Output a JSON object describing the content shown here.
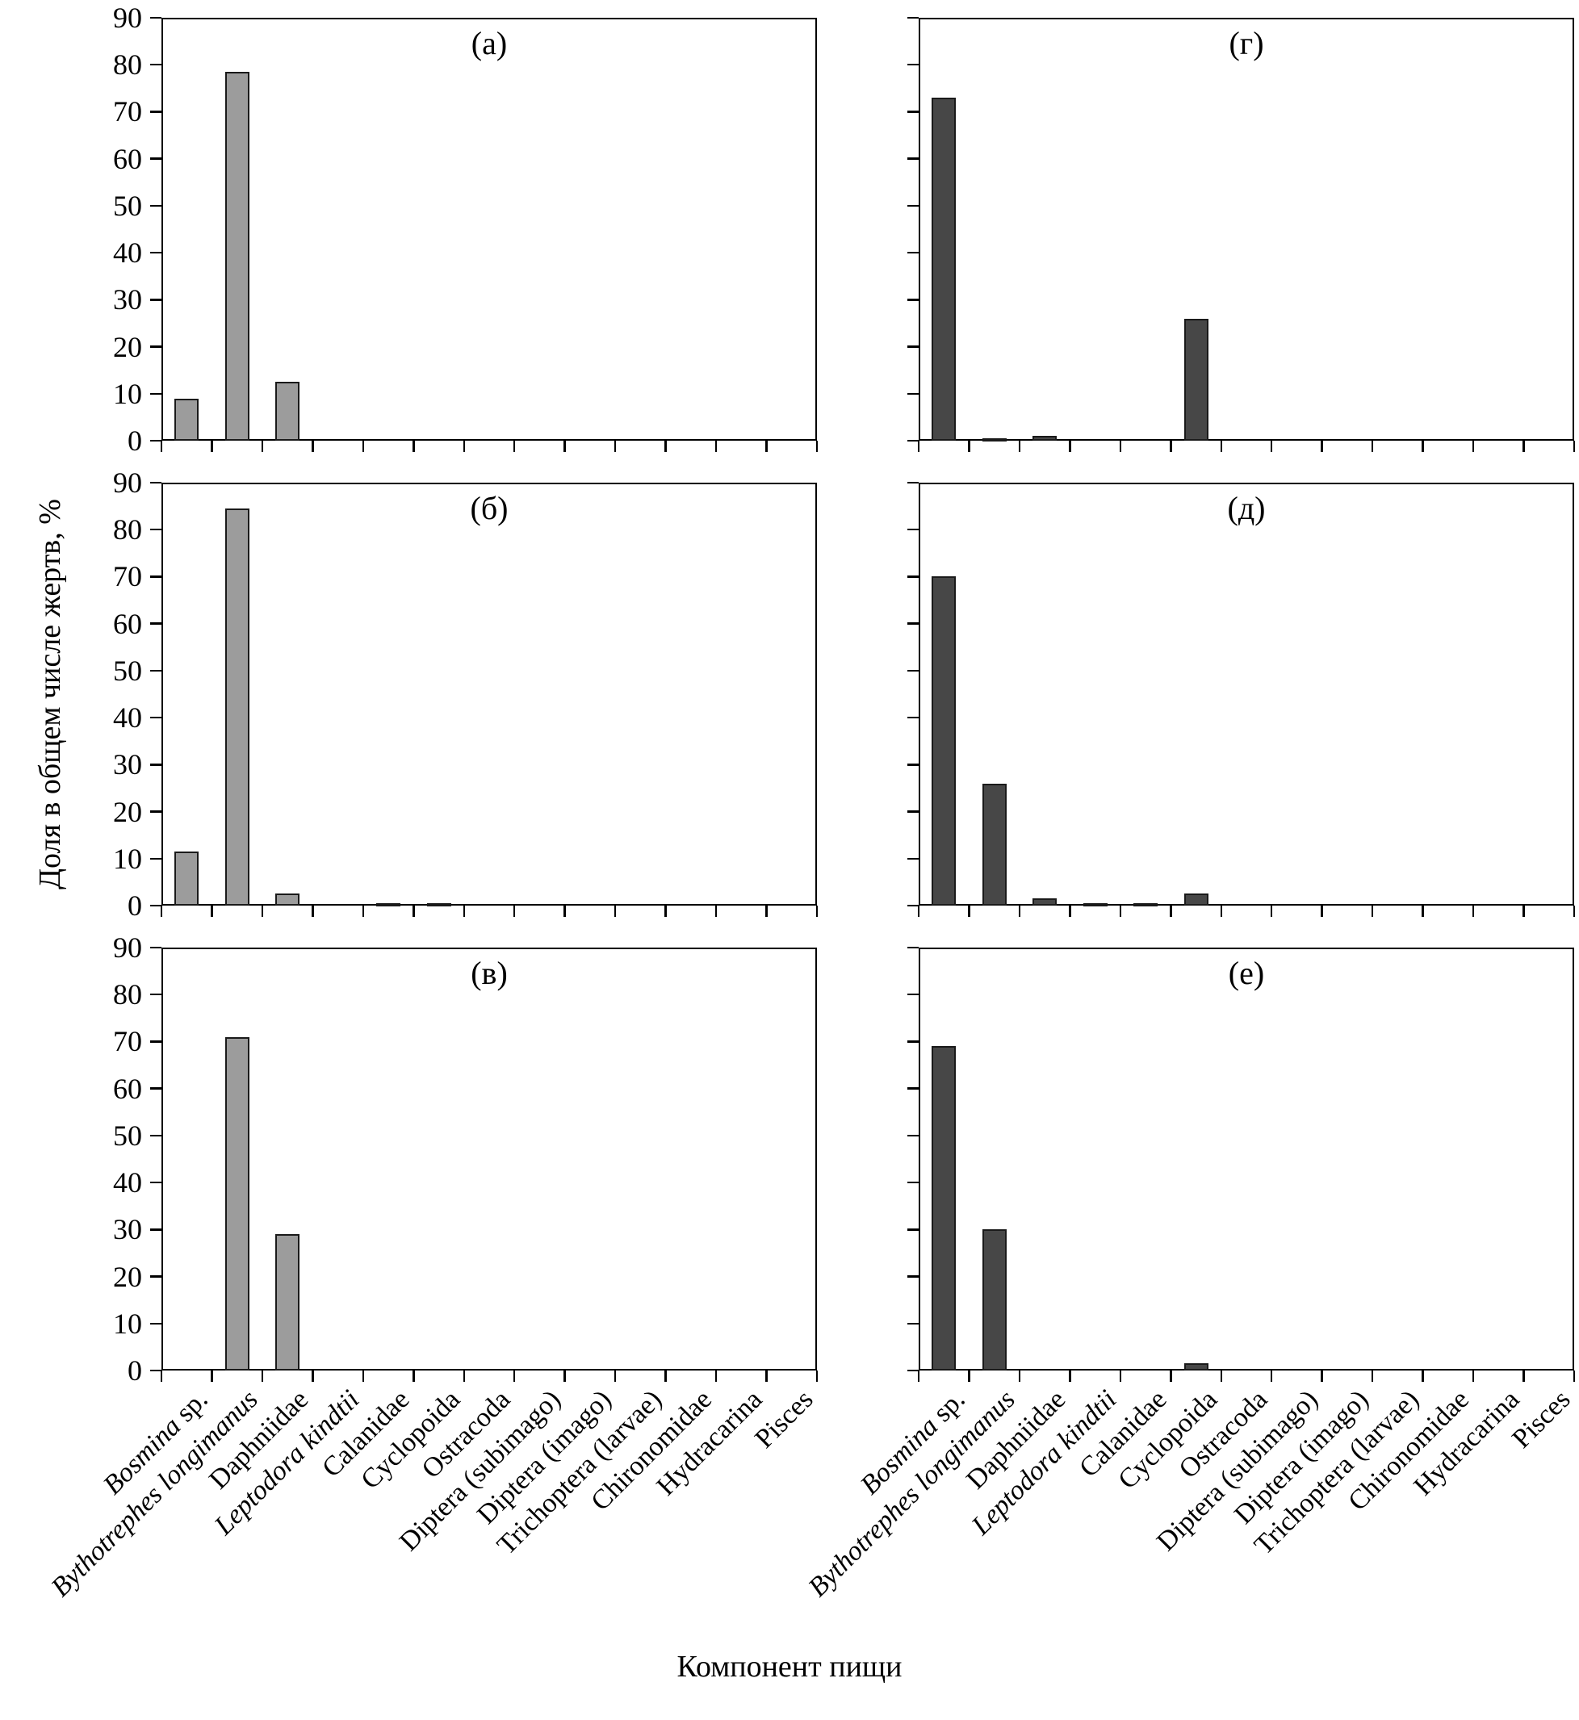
{
  "chart_data": {
    "type": "bar",
    "title": "",
    "xlabel": "Компонент пищи",
    "ylabel": "Доля в общем числе жертв, %",
    "ylim": [
      0,
      90
    ],
    "yticks": [
      0,
      10,
      20,
      30,
      40,
      50,
      60,
      70,
      80,
      90
    ],
    "grid": false,
    "legend": "none",
    "categories": [
      "Bosmina sp.",
      "Bythotrephes longimanus",
      "Daphniidae",
      "Leptodora kindtii",
      "Calanidae",
      "Cyclopoida",
      "Ostracoda",
      "Diptera (subimago)",
      "Diptera (imago)",
      "Trichoptera (larvae)",
      "Chironomidae",
      "Hydracarina",
      "Pisces"
    ],
    "category_parts": [
      [
        {
          "text": "Bosmina",
          "italic": true
        },
        {
          "text": " sp.",
          "italic": false
        }
      ],
      [
        {
          "text": "Bythotrephes longimanus",
          "italic": true
        }
      ],
      [
        {
          "text": "Daphniidae",
          "italic": false
        }
      ],
      [
        {
          "text": "Leptodora kindtii",
          "italic": true
        }
      ],
      [
        {
          "text": "Calanidae",
          "italic": false
        }
      ],
      [
        {
          "text": "Cyclopoida",
          "italic": false
        }
      ],
      [
        {
          "text": "Ostracoda",
          "italic": false
        }
      ],
      [
        {
          "text": "Diptera (subimago)",
          "italic": false
        }
      ],
      [
        {
          "text": "Diptera (imago)",
          "italic": false
        }
      ],
      [
        {
          "text": "Trichoptera (larvae)",
          "italic": false
        }
      ],
      [
        {
          "text": "Chironomidae",
          "italic": false
        }
      ],
      [
        {
          "text": "Hydracarina",
          "italic": false
        }
      ],
      [
        {
          "text": "Pisces",
          "italic": false
        }
      ]
    ],
    "bar_colors": {
      "left_column": "#9c9c9c",
      "right_column": "#474747"
    },
    "panels": [
      {
        "label": "(а)",
        "column": "left",
        "values": [
          9,
          78.5,
          12.5,
          0,
          0,
          0,
          0,
          0,
          0,
          0,
          0,
          0,
          0
        ]
      },
      {
        "label": "(б)",
        "column": "left",
        "values": [
          11.5,
          84.5,
          2.5,
          0,
          0.5,
          0.5,
          0,
          0,
          0,
          0,
          0,
          0,
          0
        ]
      },
      {
        "label": "(в)",
        "column": "left",
        "values": [
          0,
          71,
          29,
          0,
          0,
          0,
          0,
          0,
          0,
          0,
          0,
          0,
          0
        ]
      },
      {
        "label": "(г)",
        "column": "right",
        "values": [
          73,
          0.5,
          1,
          0,
          0,
          26,
          0,
          0,
          0,
          0,
          0,
          0,
          0
        ]
      },
      {
        "label": "(д)",
        "column": "right",
        "values": [
          70,
          26,
          1.5,
          0.5,
          0.5,
          2.5,
          0,
          0,
          0,
          0,
          0,
          0,
          0
        ]
      },
      {
        "label": "(е)",
        "column": "right",
        "values": [
          69,
          30,
          0,
          0,
          0,
          1.5,
          0,
          0,
          0,
          0,
          0,
          0,
          0
        ]
      }
    ]
  }
}
